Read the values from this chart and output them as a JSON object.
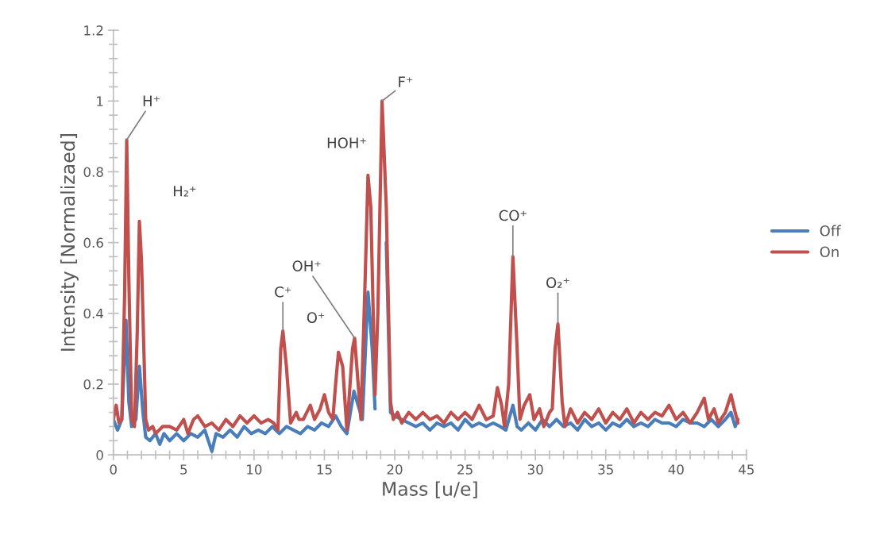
{
  "chart_data": {
    "type": "line",
    "xlabel": "Mass [u/e]",
    "ylabel": "Intensity [Normalizaed]",
    "xlim": [
      0,
      45
    ],
    "xticks": [
      0,
      5,
      10,
      15,
      20,
      25,
      30,
      35,
      40,
      45
    ],
    "ylim": [
      0,
      1.2
    ],
    "yticks": [
      0,
      0.2,
      0.4,
      0.6,
      0.8,
      1,
      1.2
    ],
    "grid": false,
    "legend": "right",
    "marker": "none",
    "line_style": "solid",
    "series": [
      {
        "name": "Off",
        "color": "#4a7ebb",
        "x": [
          0,
          0.3,
          0.6,
          0.9,
          1.1,
          1.3,
          1.6,
          1.85,
          2.1,
          2.3,
          2.6,
          3,
          3.3,
          3.6,
          4,
          4.5,
          5,
          5.5,
          6,
          6.5,
          7,
          7.3,
          7.8,
          8.3,
          8.8,
          9.3,
          9.8,
          10.3,
          10.8,
          11.3,
          11.8,
          12.3,
          12.8,
          13.3,
          13.8,
          14.3,
          14.8,
          15.3,
          15.8,
          16.2,
          16.6,
          17.1,
          17.4,
          17.7,
          18.1,
          18.4,
          18.6,
          19.1,
          19.4,
          19.7,
          20,
          20.5,
          21,
          21.5,
          22,
          22.5,
          23,
          23.5,
          24,
          24.5,
          25,
          25.5,
          26,
          26.5,
          27,
          27.5,
          27.9,
          28.4,
          28.7,
          29,
          29.5,
          30,
          30.5,
          31,
          31.5,
          32,
          32.5,
          33,
          33.5,
          34,
          34.5,
          35,
          35.5,
          36,
          36.5,
          37,
          37.5,
          38,
          38.5,
          39,
          39.5,
          40,
          40.5,
          41,
          41.5,
          42,
          42.5,
          43,
          43.5,
          43.9,
          44.2,
          44.4
        ],
        "values": [
          0.1,
          0.07,
          0.1,
          0.38,
          0.15,
          0.08,
          0.1,
          0.25,
          0.12,
          0.05,
          0.04,
          0.06,
          0.03,
          0.06,
          0.04,
          0.06,
          0.04,
          0.06,
          0.05,
          0.07,
          0.01,
          0.06,
          0.05,
          0.07,
          0.05,
          0.08,
          0.06,
          0.07,
          0.06,
          0.08,
          0.06,
          0.08,
          0.07,
          0.06,
          0.08,
          0.07,
          0.09,
          0.08,
          0.11,
          0.08,
          0.06,
          0.18,
          0.14,
          0.1,
          0.46,
          0.3,
          0.13,
          null,
          0.6,
          0.12,
          0.11,
          0.1,
          0.09,
          0.08,
          0.09,
          0.07,
          0.09,
          0.08,
          0.09,
          0.07,
          0.1,
          0.08,
          0.09,
          0.08,
          0.09,
          0.08,
          0.07,
          0.14,
          0.08,
          0.07,
          0.09,
          0.07,
          0.1,
          0.08,
          0.1,
          0.08,
          0.09,
          0.07,
          0.1,
          0.08,
          0.09,
          0.07,
          0.09,
          0.08,
          0.1,
          0.08,
          0.09,
          0.08,
          0.1,
          0.09,
          0.09,
          0.08,
          0.1,
          0.09,
          0.09,
          0.08,
          0.1,
          0.08,
          0.1,
          0.12,
          0.08,
          0.1
        ]
      },
      {
        "name": "On",
        "color": "#c0504d",
        "x": [
          0,
          0.2,
          0.4,
          0.6,
          0.8,
          0.95,
          1.1,
          1.3,
          1.5,
          1.7,
          1.85,
          2,
          2.3,
          2.5,
          2.8,
          3,
          3.5,
          4,
          4.5,
          5,
          5.3,
          5.7,
          6,
          6.5,
          7,
          7.5,
          8,
          8.5,
          9,
          9.5,
          10,
          10.5,
          11,
          11.4,
          11.7,
          11.9,
          12.05,
          12.3,
          12.6,
          13,
          13.2,
          13.5,
          14,
          14.3,
          14.7,
          15,
          15.3,
          15.6,
          15.8,
          16,
          16.3,
          16.6,
          17,
          17.15,
          17.4,
          17.6,
          17.9,
          18.1,
          18.3,
          18.6,
          18.8,
          19.1,
          19.4,
          19.7,
          19.9,
          20.2,
          20.5,
          21,
          21.5,
          22,
          22.5,
          23,
          23.5,
          24,
          24.5,
          25,
          25.5,
          26,
          26.5,
          27,
          27.3,
          27.6,
          27.8,
          28.1,
          28.4,
          28.7,
          28.9,
          29.2,
          29.6,
          29.9,
          30.3,
          30.6,
          31,
          31.2,
          31.4,
          31.6,
          31.9,
          32.1,
          32.5,
          33,
          33.5,
          34,
          34.5,
          35,
          35.5,
          36,
          36.5,
          37,
          37.5,
          38,
          38.5,
          39,
          39.5,
          40,
          40.5,
          41,
          41.5,
          42,
          42.3,
          42.7,
          43,
          43.5,
          43.9,
          44.2,
          44.4
        ],
        "values": [
          0.1,
          0.14,
          0.09,
          0.1,
          0.45,
          0.89,
          0.5,
          0.1,
          0.08,
          0.35,
          0.66,
          0.55,
          0.1,
          0.07,
          0.08,
          0.06,
          0.08,
          0.08,
          0.07,
          0.1,
          0.06,
          0.1,
          0.11,
          0.08,
          0.09,
          0.07,
          0.1,
          0.08,
          0.11,
          0.09,
          0.11,
          0.09,
          0.1,
          0.09,
          0.07,
          0.3,
          0.35,
          0.25,
          0.09,
          0.12,
          0.1,
          0.1,
          0.14,
          0.1,
          0.13,
          0.17,
          0.12,
          0.1,
          0.2,
          0.29,
          0.25,
          0.07,
          0.3,
          0.33,
          0.2,
          0.1,
          0.5,
          0.79,
          0.7,
          0.17,
          0.4,
          1.0,
          0.7,
          0.15,
          0.1,
          0.12,
          0.09,
          0.12,
          0.1,
          0.12,
          0.1,
          0.11,
          0.09,
          0.12,
          0.1,
          0.12,
          0.1,
          0.14,
          0.1,
          0.11,
          0.19,
          0.14,
          0.08,
          0.2,
          0.56,
          0.3,
          0.1,
          0.14,
          0.17,
          0.1,
          0.13,
          0.08,
          0.12,
          0.13,
          0.3,
          0.37,
          0.15,
          0.08,
          0.13,
          0.09,
          0.12,
          0.1,
          0.13,
          0.09,
          0.12,
          0.1,
          0.13,
          0.09,
          0.12,
          0.1,
          0.12,
          0.11,
          0.14,
          0.1,
          0.12,
          0.09,
          0.12,
          0.16,
          0.1,
          0.13,
          0.09,
          0.12,
          0.17,
          0.12,
          0.09
        ]
      }
    ],
    "annotations": [
      {
        "text": "H⁺",
        "x": 0.95,
        "y": 0.89
      },
      {
        "text": "H₂⁺",
        "x": 1.85,
        "y": 0.66
      },
      {
        "text": "C⁺",
        "x": 12.05,
        "y": 0.35
      },
      {
        "text": "O⁺",
        "x": 16,
        "y": 0.29
      },
      {
        "text": "OH⁺",
        "x": 17.15,
        "y": 0.33
      },
      {
        "text": "HOH⁺",
        "x": 18.1,
        "y": 0.79
      },
      {
        "text": "F⁺",
        "x": 19.1,
        "y": 1.0
      },
      {
        "text": "CO⁺",
        "x": 28.4,
        "y": 0.56
      },
      {
        "text": "O₂⁺",
        "x": 31.6,
        "y": 0.37
      }
    ]
  }
}
